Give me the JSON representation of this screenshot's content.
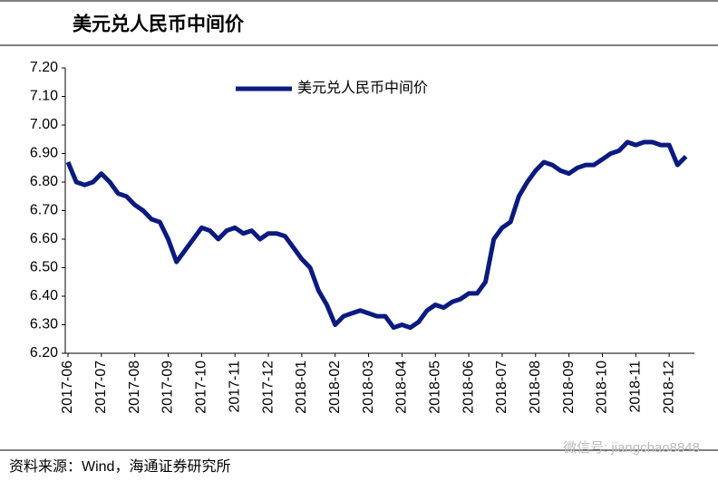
{
  "chart_data": {
    "type": "line",
    "title": "美元兑人民币中间价",
    "source": "资料来源：Wind，海通证券研究所",
    "watermark": "微信号: jiangchao8848",
    "categories": [
      "2017-06",
      null,
      null,
      null,
      "2017-07",
      null,
      null,
      null,
      "2017-08",
      null,
      null,
      null,
      "2017-09",
      null,
      null,
      null,
      "2017-10",
      null,
      null,
      null,
      "2017-11",
      null,
      null,
      null,
      "2017-12",
      null,
      null,
      null,
      "2018-01",
      null,
      null,
      null,
      "2018-02",
      null,
      null,
      null,
      "2018-03",
      null,
      null,
      null,
      "2018-04",
      null,
      null,
      null,
      "2018-05",
      null,
      null,
      null,
      "2018-06",
      null,
      null,
      null,
      "2018-07",
      null,
      null,
      null,
      "2018-08",
      null,
      null,
      null,
      "2018-09",
      null,
      null,
      null,
      "2018-10",
      null,
      null,
      null,
      "2018-11",
      null,
      null,
      null,
      "2018-12",
      null,
      null
    ],
    "series": [
      {
        "name": "美元兑人民币中间价",
        "color": "#0b1a80",
        "values": [
          6.87,
          6.8,
          6.79,
          6.8,
          6.83,
          6.8,
          6.76,
          6.75,
          6.72,
          6.7,
          6.67,
          6.66,
          6.6,
          6.52,
          6.56,
          6.6,
          6.64,
          6.63,
          6.6,
          6.63,
          6.64,
          6.62,
          6.63,
          6.6,
          6.62,
          6.62,
          6.61,
          6.57,
          6.53,
          6.5,
          6.42,
          6.37,
          6.3,
          6.33,
          6.34,
          6.35,
          6.34,
          6.33,
          6.33,
          6.29,
          6.3,
          6.29,
          6.31,
          6.35,
          6.37,
          6.36,
          6.38,
          6.39,
          6.41,
          6.41,
          6.45,
          6.6,
          6.64,
          6.66,
          6.75,
          6.8,
          6.84,
          6.87,
          6.86,
          6.84,
          6.83,
          6.85,
          6.86,
          6.86,
          6.88,
          6.9,
          6.91,
          6.94,
          6.93,
          6.94,
          6.94,
          6.93,
          6.93,
          6.86,
          6.89
        ]
      }
    ],
    "ylim": [
      6.2,
      7.2
    ],
    "yticks": [
      {
        "value": 6.2,
        "label": "6.20"
      },
      {
        "value": 6.3,
        "label": "6.30"
      },
      {
        "value": 6.4,
        "label": "6.40"
      },
      {
        "value": 6.5,
        "label": "6.50"
      },
      {
        "value": 6.6,
        "label": "6.60"
      },
      {
        "value": 6.7,
        "label": "6.70"
      },
      {
        "value": 6.8,
        "label": "6.80"
      },
      {
        "value": 6.9,
        "label": "6.90"
      },
      {
        "value": 7.0,
        "label": "7.00"
      },
      {
        "value": 7.1,
        "label": "7.10"
      },
      {
        "value": 7.2,
        "label": "7.20"
      }
    ],
    "grid": false,
    "legend": "top-left"
  }
}
